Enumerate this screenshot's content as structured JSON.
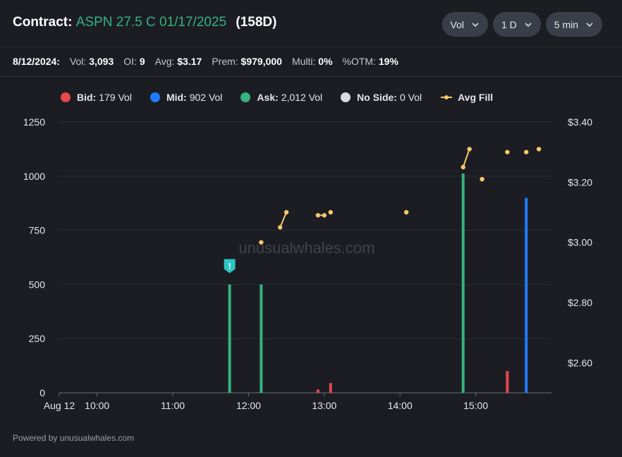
{
  "header": {
    "title_label": "Contract:",
    "contract": "ASPN 27.5 C 01/17/2025",
    "dte": "(158D)",
    "controls": [
      {
        "label": "Vol",
        "name": "metric-select"
      },
      {
        "label": "1 D",
        "name": "range-select"
      },
      {
        "label": "5 min",
        "name": "interval-select"
      }
    ]
  },
  "stats": {
    "date": "8/12/2024:",
    "items": [
      {
        "key": "Vol:",
        "value": "3,093"
      },
      {
        "key": "OI:",
        "value": "9"
      },
      {
        "key": "Avg:",
        "value": "$3.17"
      },
      {
        "key": "Prem:",
        "value": "$979,000"
      },
      {
        "key": "Multi:",
        "value": "0%"
      },
      {
        "key": "%OTM:",
        "value": "19%"
      }
    ]
  },
  "legend": [
    {
      "label": "Bid:",
      "value": "179 Vol",
      "color": "#e5484d",
      "type": "dot"
    },
    {
      "label": "Mid:",
      "value": "902 Vol",
      "color": "#1f7cff",
      "type": "dot"
    },
    {
      "label": "Ask:",
      "value": "2,012 Vol",
      "color": "#36b37e",
      "type": "dot"
    },
    {
      "label": "No Side:",
      "value": "0 Vol",
      "color": "#d9dbe0",
      "type": "dot"
    },
    {
      "label": "Avg Fill",
      "value": "",
      "color": "#f5c86a",
      "type": "line"
    }
  ],
  "watermark": "unusualwhales.com",
  "footer": "Powered by unusualwhales.com",
  "colors": {
    "bid": "#e5484d",
    "mid": "#1f7cff",
    "ask": "#36b37e",
    "avg_fill": "#f5c86a",
    "alert": "#2ec4c4"
  },
  "chart_data": {
    "type": "bar",
    "time_range": [
      "09:30",
      "16:00"
    ],
    "x_ticks": [
      {
        "time": "09:30",
        "label": "Aug 12"
      },
      {
        "time": "10:00",
        "label": "10:00"
      },
      {
        "time": "11:00",
        "label": "11:00"
      },
      {
        "time": "12:00",
        "label": "12:00"
      },
      {
        "time": "13:00",
        "label": "13:00"
      },
      {
        "time": "14:00",
        "label": "14:00"
      },
      {
        "time": "15:00",
        "label": "15:00"
      }
    ],
    "ylim": [
      0,
      1250
    ],
    "y_ticks": [
      0,
      250,
      500,
      750,
      1000,
      1250
    ],
    "y2lim": [
      2.5,
      3.4
    ],
    "y2_ticks": [
      {
        "value": 2.6,
        "label": "$2.60"
      },
      {
        "value": 2.8,
        "label": "$2.80"
      },
      {
        "value": 3.0,
        "label": "$3.00"
      },
      {
        "value": 3.2,
        "label": "$3.20"
      },
      {
        "value": 3.4,
        "label": "$3.40"
      }
    ],
    "bars": [
      {
        "time": "11:45",
        "side": "ask",
        "volume": 500
      },
      {
        "time": "12:10",
        "side": "ask",
        "volume": 500
      },
      {
        "time": "12:55",
        "side": "bid",
        "volume": 15
      },
      {
        "time": "13:05",
        "side": "bid",
        "volume": 45
      },
      {
        "time": "14:50",
        "side": "ask",
        "volume": 1012
      },
      {
        "time": "15:25",
        "side": "bid",
        "volume": 100
      },
      {
        "time": "15:40",
        "side": "mid",
        "volume": 900
      }
    ],
    "avg_fill": [
      [
        {
          "time": "12:10",
          "value": 3.0
        }
      ],
      [
        {
          "time": "12:25",
          "value": 3.05
        },
        {
          "time": "12:30",
          "value": 3.1
        }
      ],
      [
        {
          "time": "12:55",
          "value": 3.09
        },
        {
          "time": "13:00",
          "value": 3.09
        }
      ],
      [
        {
          "time": "13:05",
          "value": 3.1
        }
      ],
      [
        {
          "time": "14:05",
          "value": 3.1
        }
      ],
      [
        {
          "time": "14:50",
          "value": 3.25
        },
        {
          "time": "14:55",
          "value": 3.31
        }
      ],
      [
        {
          "time": "15:05",
          "value": 3.21
        }
      ],
      [
        {
          "time": "15:25",
          "value": 3.3
        }
      ],
      [
        {
          "time": "15:40",
          "value": 3.3
        }
      ],
      [
        {
          "time": "15:50",
          "value": 3.31
        }
      ]
    ],
    "alert": {
      "time": "11:45",
      "symbol": "!"
    },
    "grid": true
  }
}
